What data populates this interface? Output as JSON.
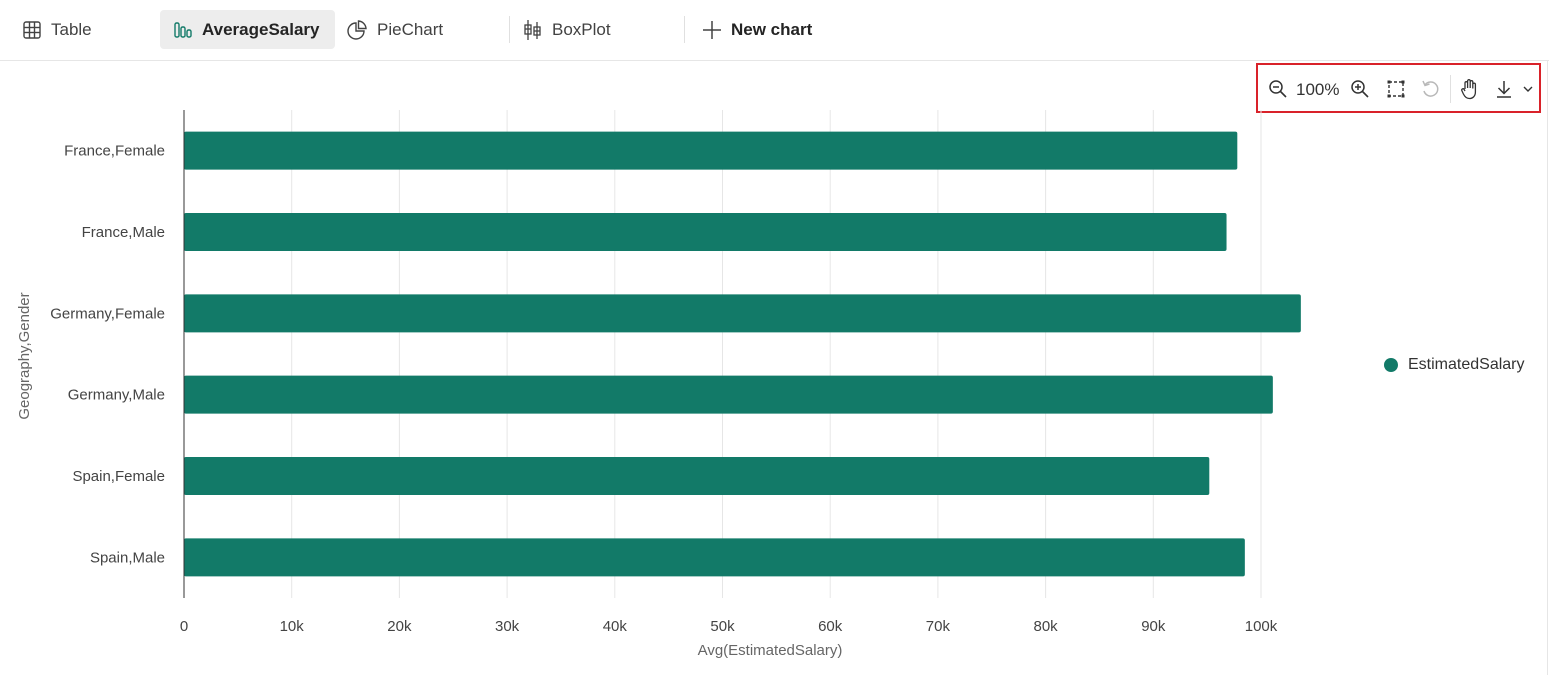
{
  "tabs": [
    {
      "label": "Table",
      "icon": "table-icon"
    },
    {
      "label": "AverageSalary",
      "icon": "bar-chart-icon",
      "active": true
    },
    {
      "label": "PieChart",
      "icon": "pie-chart-icon"
    },
    {
      "label": "BoxPlot",
      "icon": "box-plot-icon"
    }
  ],
  "new_chart_label": "New chart",
  "toolbar": {
    "zoom_level": "100%",
    "icons": [
      "zoom-out-icon",
      "zoom-in-icon",
      "select-region-icon",
      "reset-icon",
      "pan-hand-icon",
      "download-icon",
      "chevron-down-icon"
    ]
  },
  "colors": {
    "bar": "#127a68",
    "accent_border": "#d9222a",
    "grid": "#e6e6e6"
  },
  "chart_data": {
    "type": "bar",
    "orientation": "horizontal",
    "categories": [
      "France,Female",
      "France,Male",
      "Germany,Female",
      "Germany,Male",
      "Spain,Female",
      "Spain,Male"
    ],
    "series": [
      {
        "name": "EstimatedSalary",
        "values": [
          97800,
          96800,
          103700,
          101100,
          95200,
          98500
        ]
      }
    ],
    "xlabel": "Avg(EstimatedSalary)",
    "ylabel": "Geography,Gender",
    "xlim": [
      0,
      100000
    ],
    "xticks": [
      0,
      10000,
      20000,
      30000,
      40000,
      50000,
      60000,
      70000,
      80000,
      90000,
      100000
    ],
    "xtick_labels": [
      "0",
      "10k",
      "20k",
      "30k",
      "40k",
      "50k",
      "60k",
      "70k",
      "80k",
      "90k",
      "100k"
    ],
    "grid": "vertical",
    "legend_position": "right"
  }
}
